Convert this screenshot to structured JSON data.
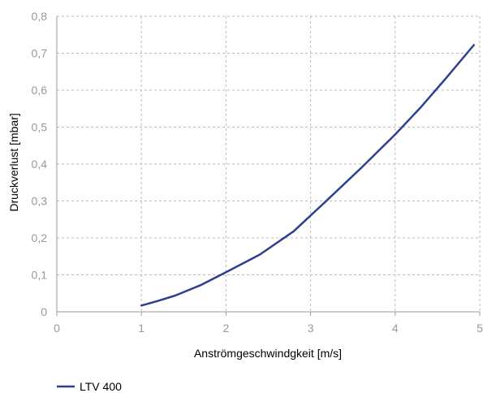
{
  "chart_data": {
    "type": "line",
    "title": "",
    "xlabel": "Anströmgeschwindgkeit [m/s]",
    "ylabel": "Druckverlust [mbar]",
    "xlim": [
      0,
      5
    ],
    "ylim": [
      0,
      0.8
    ],
    "x_ticks": [
      "0",
      "1",
      "2",
      "3",
      "4",
      "5"
    ],
    "y_ticks": [
      "0",
      "0,1",
      "0,2",
      "0,3",
      "0,4",
      "0,5",
      "0,6",
      "0,7",
      "0,8"
    ],
    "grid": true,
    "legend_position": "bottom-left",
    "series": [
      {
        "name": "LTV 400",
        "color": "#2e3f8f",
        "x": [
          1.0,
          1.2,
          1.4,
          1.7,
          2.0,
          2.4,
          2.8,
          3.2,
          3.6,
          4.0,
          4.3,
          4.6,
          4.93
        ],
        "y": [
          0.017,
          0.03,
          0.044,
          0.072,
          0.107,
          0.155,
          0.218,
          0.303,
          0.39,
          0.48,
          0.553,
          0.632,
          0.722
        ]
      }
    ]
  }
}
